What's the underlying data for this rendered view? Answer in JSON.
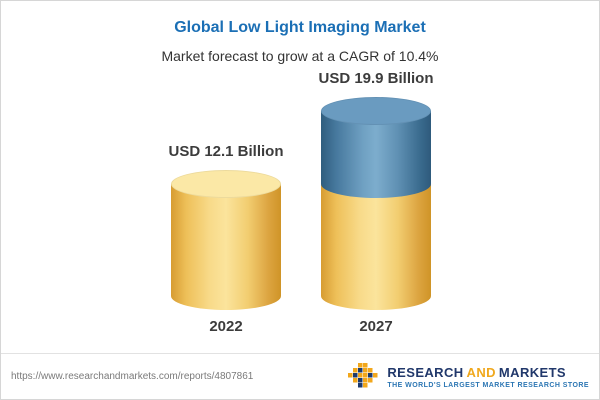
{
  "header": {
    "title": "Global Low Light Imaging Market",
    "subtitle": "Market forecast to grow at a CAGR of 10.4%"
  },
  "chart_data": {
    "type": "bar",
    "variant": "3d-cylinder",
    "title": "Global Low Light Imaging Market",
    "subtitle": "Market forecast to grow at a CAGR of 10.4%",
    "cagr": "10.4%",
    "unit": "USD Billion",
    "categories": [
      "2022",
      "2027"
    ],
    "values": [
      12.1,
      19.9
    ],
    "bars": [
      {
        "category": "2022",
        "total": 12.1,
        "value_label": "USD 12.1 Billion",
        "segments": [
          {
            "color": "gold",
            "value": 12.1,
            "meaning": "2022 market size"
          }
        ]
      },
      {
        "category": "2027",
        "total": 19.9,
        "value_label": "USD 19.9 Billion",
        "segments": [
          {
            "color": "gold",
            "value": 12.1,
            "meaning": "2022 base"
          },
          {
            "color": "blue",
            "value": 7.8,
            "meaning": "forecast growth to 2027"
          }
        ]
      }
    ],
    "legend": "none",
    "grid": false,
    "ylim": [
      0,
      19.9
    ]
  },
  "footer": {
    "url": "https://www.researchandmarkets.com/reports/4807861",
    "logo": {
      "research": "RESEARCH",
      "and": "AND",
      "markets": "MARKETS",
      "tagline": "THE WORLD'S LARGEST MARKET RESEARCH STORE"
    }
  },
  "colors": {
    "title_blue": "#1b6fb5",
    "bar_gold": "#f3cd6f",
    "bar_gold_cap": "#fbe8a6",
    "bar_blue": "#4d7fa9",
    "bar_blue_cap": "#6a9bc0",
    "label_text": "#3c3c3c",
    "logo_navy": "#21386b",
    "logo_gold": "#f0a81d",
    "tagline_blue": "#2d77b4"
  }
}
